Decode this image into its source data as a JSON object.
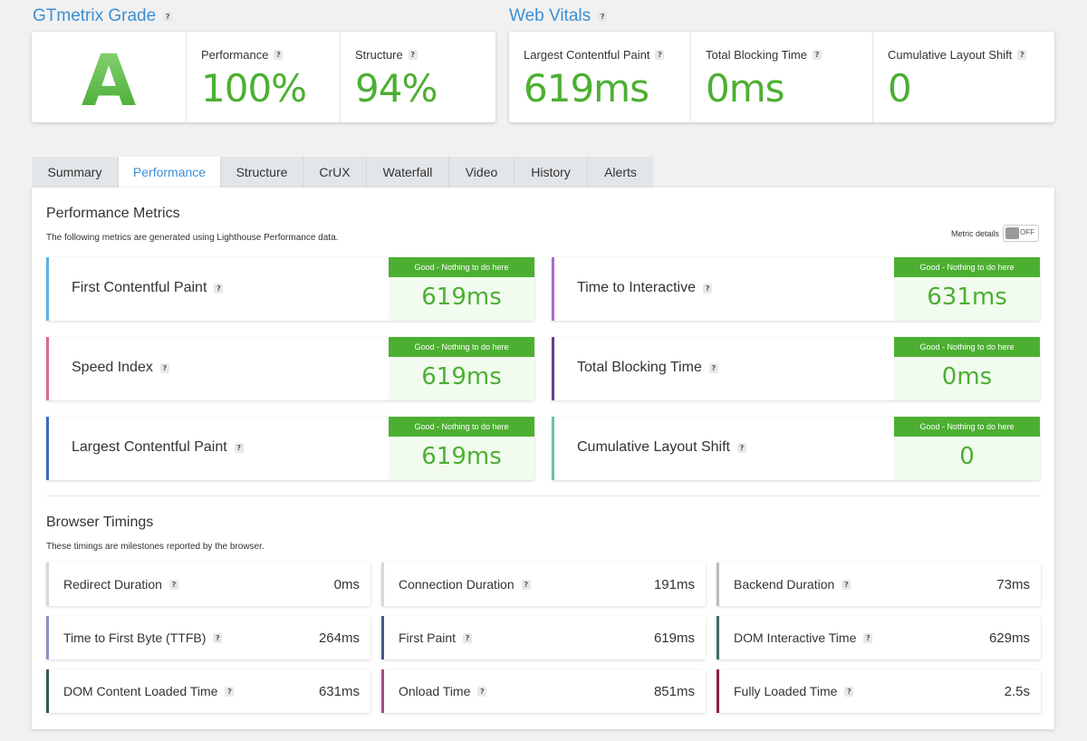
{
  "gtmetrix_grade": {
    "title": "GTmetrix Grade",
    "grade": "A",
    "performance_label": "Performance",
    "performance_value": "100%",
    "structure_label": "Structure",
    "structure_value": "94%"
  },
  "web_vitals": {
    "title": "Web Vitals",
    "lcp_label": "Largest Contentful Paint",
    "lcp_value": "619ms",
    "tbt_label": "Total Blocking Time",
    "tbt_value": "0ms",
    "cls_label": "Cumulative Layout Shift",
    "cls_value": "0"
  },
  "help_glyph": "?",
  "tabs": [
    "Summary",
    "Performance",
    "Structure",
    "CrUX",
    "Waterfall",
    "Video",
    "History",
    "Alerts"
  ],
  "active_tab": "Performance",
  "performance_metrics": {
    "title": "Performance Metrics",
    "description": "The following metrics are generated using Lighthouse Performance data.",
    "metric_details_label": "Metric details",
    "toggle_state": "OFF",
    "items": [
      {
        "name": "First Contentful Paint",
        "badge": "Good - Nothing to do here",
        "value": "619ms",
        "color": "#5bb2e6"
      },
      {
        "name": "Time to Interactive",
        "badge": "Good - Nothing to do here",
        "value": "631ms",
        "color": "#a76bd1"
      },
      {
        "name": "Speed Index",
        "badge": "Good - Nothing to do here",
        "value": "619ms",
        "color": "#e0669a"
      },
      {
        "name": "Total Blocking Time",
        "badge": "Good - Nothing to do here",
        "value": "0ms",
        "color": "#6b3f87"
      },
      {
        "name": "Largest Contentful Paint",
        "badge": "Good - Nothing to do here",
        "value": "619ms",
        "color": "#3d66c8"
      },
      {
        "name": "Cumulative Layout Shift",
        "badge": "Good - Nothing to do here",
        "value": "0",
        "color": "#6cc0a2"
      }
    ]
  },
  "browser_timings": {
    "title": "Browser Timings",
    "description": "These timings are milestones reported by the browser.",
    "items": [
      {
        "name": "Redirect Duration",
        "value": "0ms",
        "color": "#d8d8d8"
      },
      {
        "name": "Connection Duration",
        "value": "191ms",
        "color": "#d8d8d8"
      },
      {
        "name": "Backend Duration",
        "value": "73ms",
        "color": "#bdbdbd"
      },
      {
        "name": "Time to First Byte (TTFB)",
        "value": "264ms",
        "color": "#8a93c5"
      },
      {
        "name": "First Paint",
        "value": "619ms",
        "color": "#405a86"
      },
      {
        "name": "DOM Interactive Time",
        "value": "629ms",
        "color": "#3c6b66"
      },
      {
        "name": "DOM Content Loaded Time",
        "value": "631ms",
        "color": "#2f5d52"
      },
      {
        "name": "Onload Time",
        "value": "851ms",
        "color": "#a34f86"
      },
      {
        "name": "Fully Loaded Time",
        "value": "2.5s",
        "color": "#8d1e3f"
      }
    ]
  }
}
